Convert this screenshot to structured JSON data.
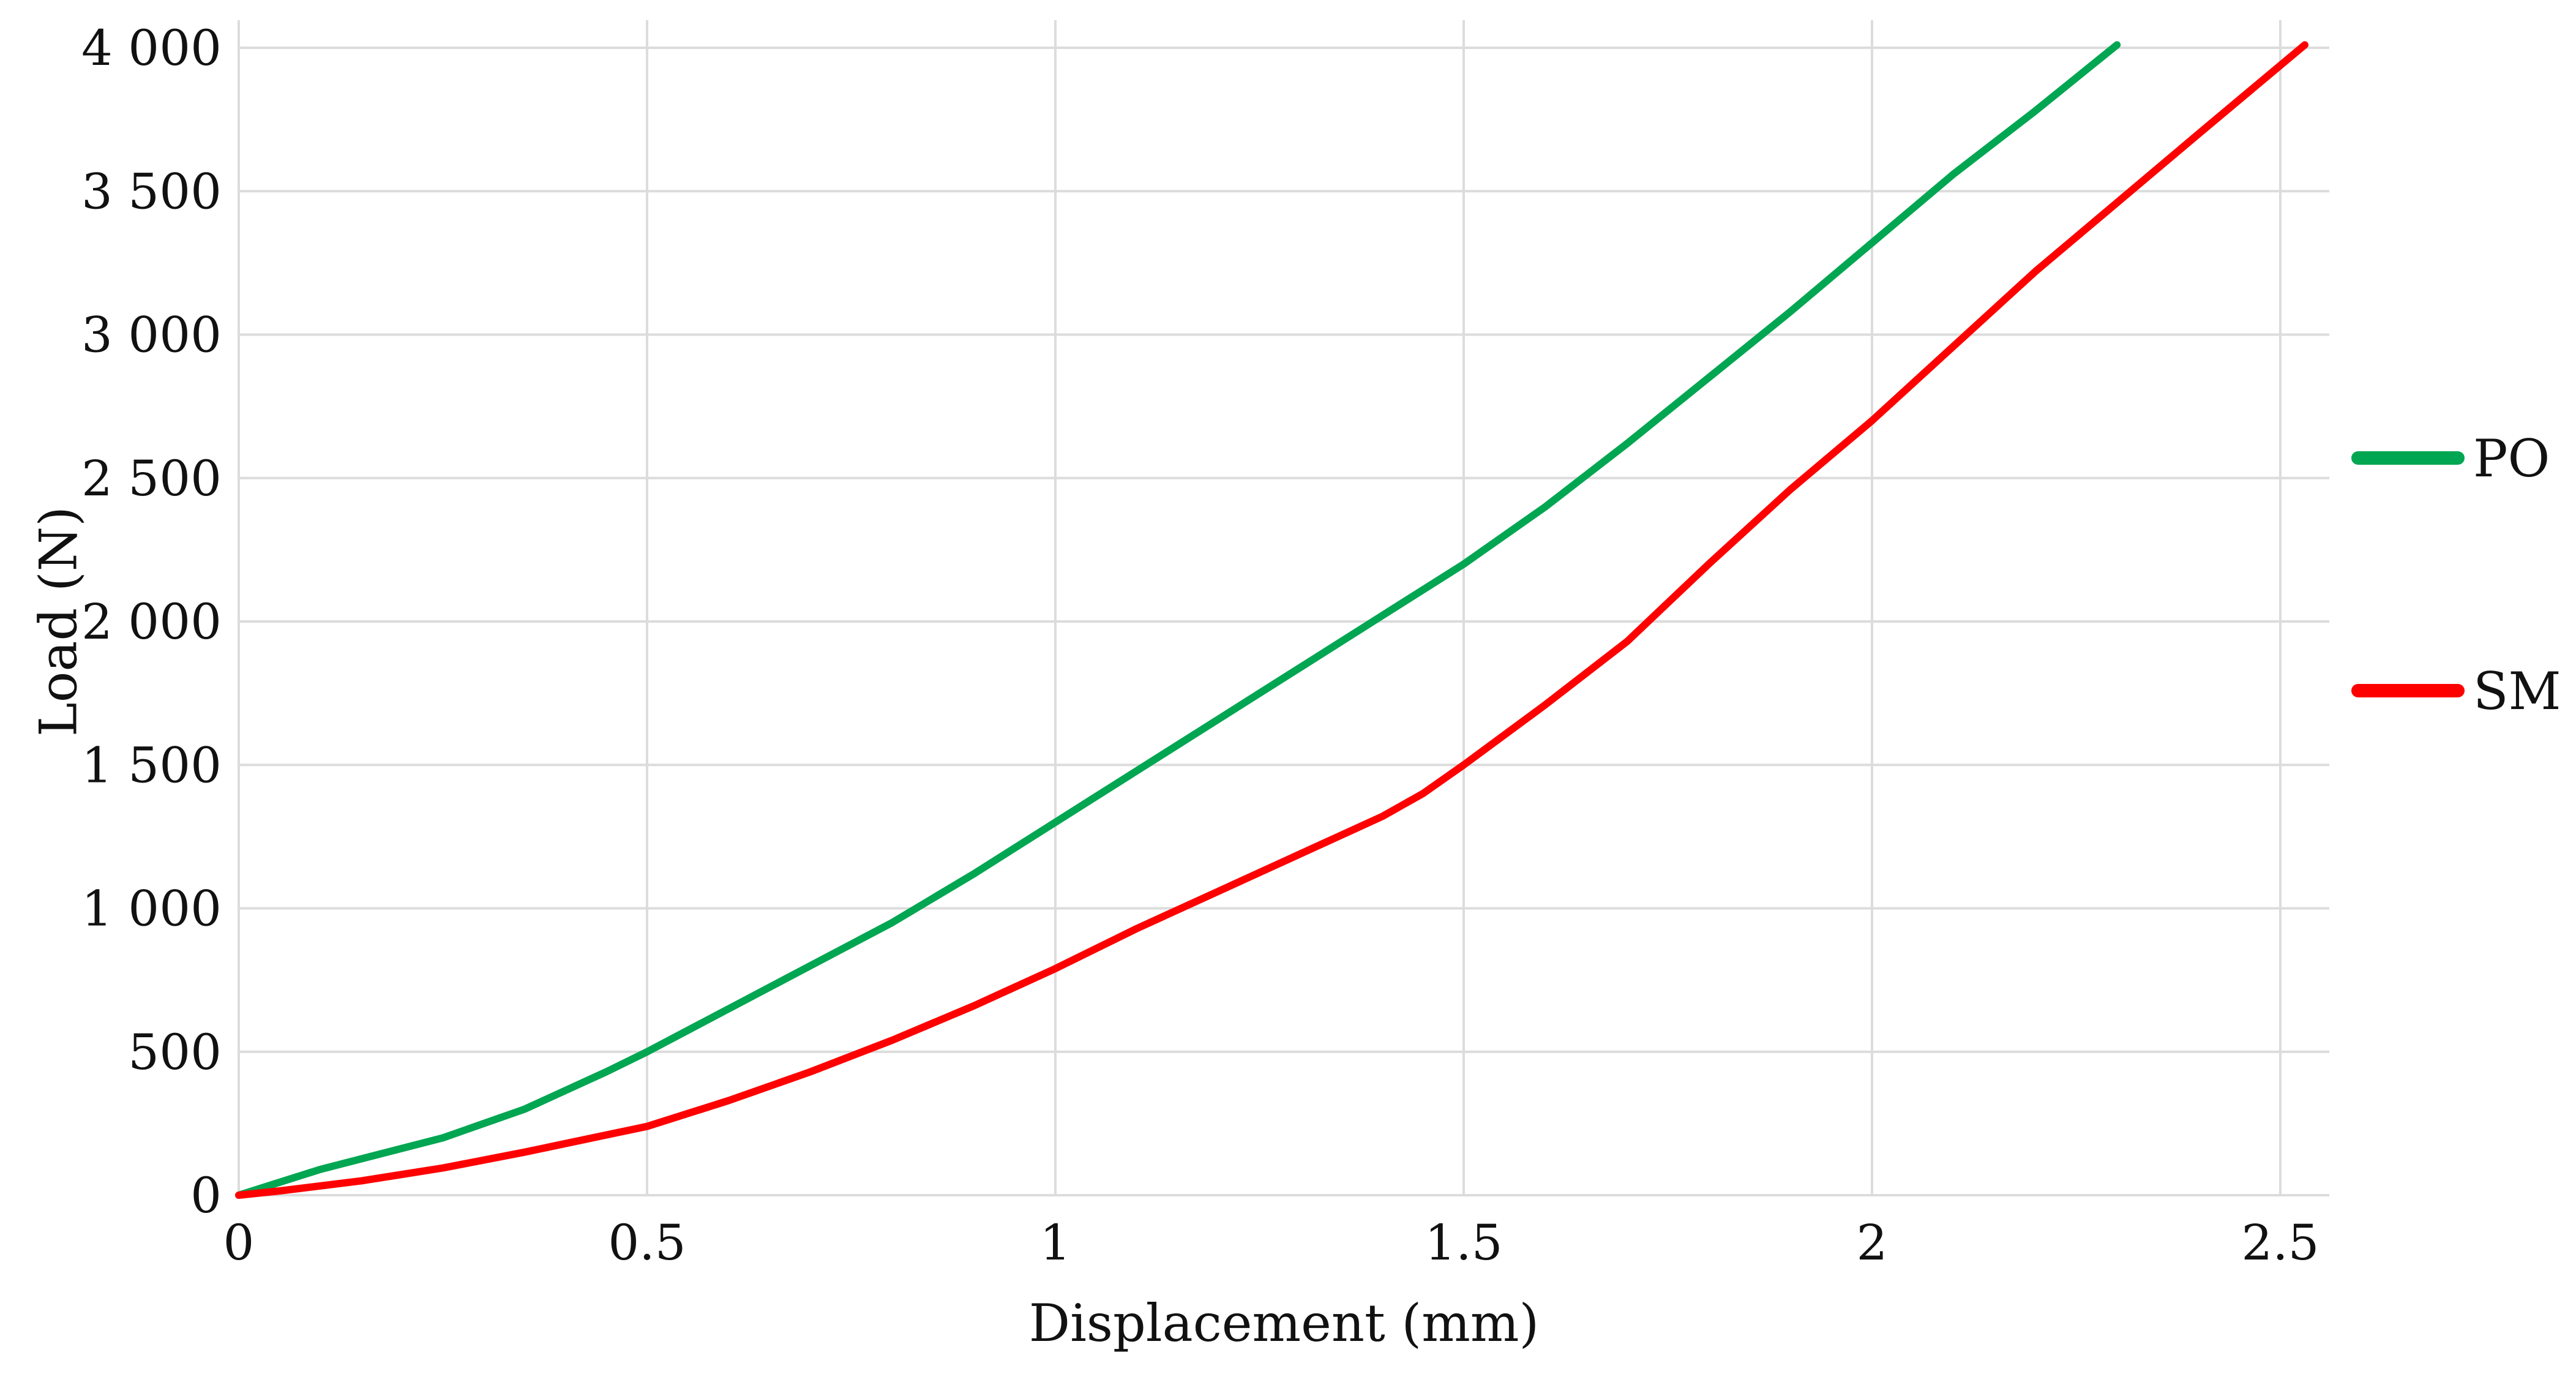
{
  "chart_data": {
    "type": "line",
    "xlabel": "Displacement (mm)",
    "ylabel": "Load (N)",
    "xlim": [
      0,
      2.56
    ],
    "ylim": [
      0,
      4000
    ],
    "x_ticks": [
      0,
      0.5,
      1,
      1.5,
      2,
      2.5
    ],
    "x_tick_labels": [
      "0",
      "0.5",
      "1",
      "1.5",
      "2",
      "2.5"
    ],
    "y_ticks": [
      0,
      500,
      1000,
      1500,
      2000,
      2500,
      3000,
      3500,
      4000
    ],
    "y_tick_labels": [
      "0",
      "500",
      "1 000",
      "1 500",
      "2 000",
      "2 500",
      "3 000",
      "3 500",
      "4 000"
    ],
    "grid": true,
    "legend_position": "right",
    "series": [
      {
        "name": "PO",
        "color": "#00a651",
        "points": [
          [
            0,
            0
          ],
          [
            0.1,
            90
          ],
          [
            0.25,
            200
          ],
          [
            0.35,
            300
          ],
          [
            0.45,
            430
          ],
          [
            0.5,
            500
          ],
          [
            0.6,
            650
          ],
          [
            0.7,
            800
          ],
          [
            0.8,
            950
          ],
          [
            0.9,
            1120
          ],
          [
            1.0,
            1300
          ],
          [
            1.1,
            1480
          ],
          [
            1.2,
            1660
          ],
          [
            1.3,
            1840
          ],
          [
            1.4,
            2020
          ],
          [
            1.5,
            2200
          ],
          [
            1.6,
            2400
          ],
          [
            1.7,
            2620
          ],
          [
            1.8,
            2850
          ],
          [
            1.9,
            3080
          ],
          [
            2.0,
            3320
          ],
          [
            2.1,
            3560
          ],
          [
            2.2,
            3780
          ],
          [
            2.3,
            4010
          ]
        ]
      },
      {
        "name": "SM",
        "color": "#ff0000",
        "points": [
          [
            0,
            0
          ],
          [
            0.05,
            15
          ],
          [
            0.15,
            50
          ],
          [
            0.25,
            95
          ],
          [
            0.35,
            150
          ],
          [
            0.45,
            210
          ],
          [
            0.5,
            240
          ],
          [
            0.6,
            330
          ],
          [
            0.7,
            430
          ],
          [
            0.8,
            540
          ],
          [
            0.9,
            660
          ],
          [
            1.0,
            790
          ],
          [
            1.1,
            930
          ],
          [
            1.2,
            1060
          ],
          [
            1.3,
            1190
          ],
          [
            1.4,
            1320
          ],
          [
            1.45,
            1400
          ],
          [
            1.5,
            1500
          ],
          [
            1.6,
            1710
          ],
          [
            1.7,
            1930
          ],
          [
            1.8,
            2200
          ],
          [
            1.9,
            2460
          ],
          [
            2.0,
            2700
          ],
          [
            2.1,
            2960
          ],
          [
            2.2,
            3220
          ],
          [
            2.3,
            3460
          ],
          [
            2.4,
            3700
          ],
          [
            2.53,
            4010
          ]
        ]
      }
    ]
  }
}
